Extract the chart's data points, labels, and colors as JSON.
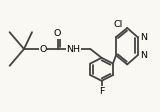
{
  "bg_color": "#faf8f2",
  "line_color": "#444444",
  "text_color": "#000000",
  "lw": 1.3,
  "font_size": 6.8,
  "xlim": [
    -0.5,
    9.5
  ],
  "ylim": [
    -0.5,
    7.5
  ]
}
